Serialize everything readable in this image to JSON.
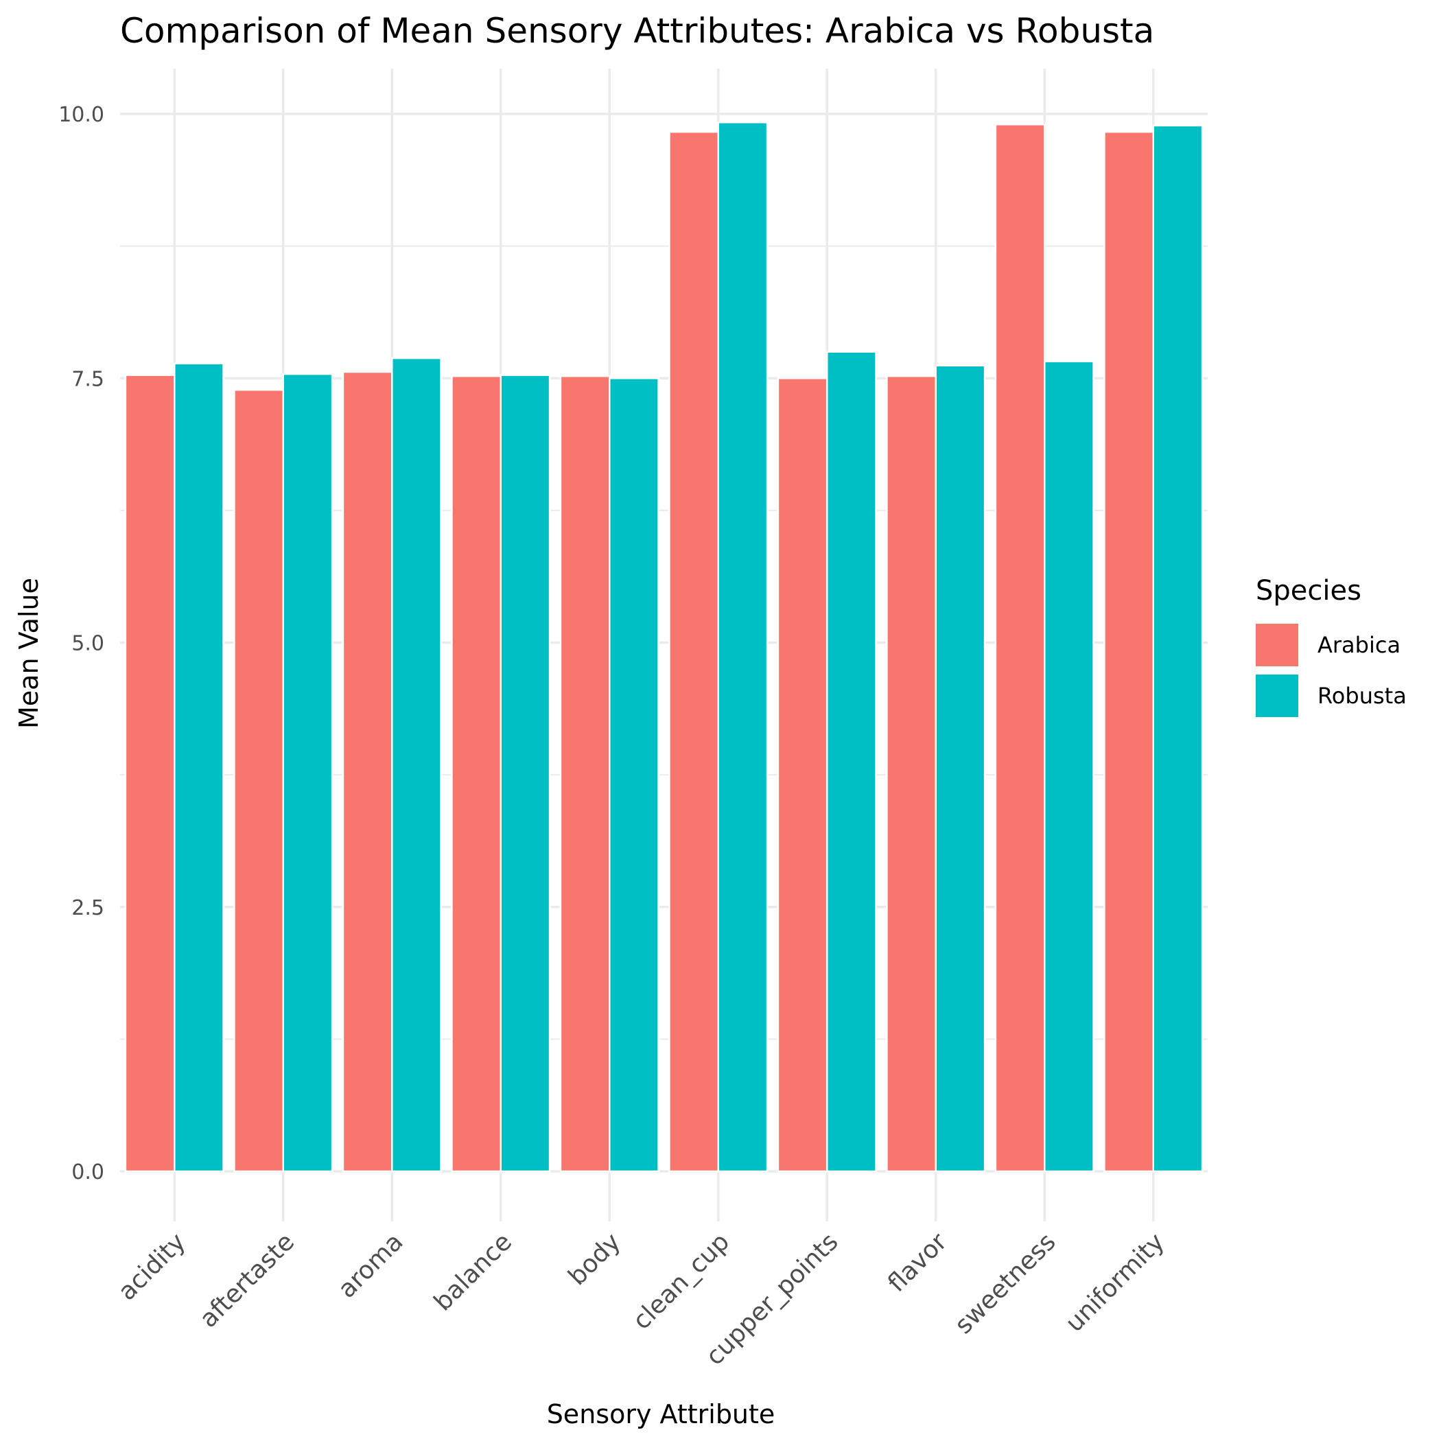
{
  "chart_data": {
    "type": "bar",
    "title": "Comparison of Mean Sensory Attributes: Arabica vs Robusta",
    "xlabel": "Sensory Attribute",
    "ylabel": "Mean Value",
    "categories": [
      "acidity",
      "aftertaste",
      "aroma",
      "balance",
      "body",
      "clean_cup",
      "cupper_points",
      "flavor",
      "sweetness",
      "uniformity"
    ],
    "series": [
      {
        "name": "Arabica",
        "color": "#F8766D",
        "values": [
          7.53,
          7.39,
          7.56,
          7.52,
          7.52,
          9.83,
          7.5,
          7.52,
          9.9,
          9.83
        ]
      },
      {
        "name": "Robusta",
        "color": "#00BFC4",
        "values": [
          7.64,
          7.54,
          7.69,
          7.53,
          7.5,
          9.92,
          7.75,
          7.62,
          7.66,
          9.89
        ]
      }
    ],
    "yticks": [
      "0.0",
      "2.5",
      "5.0",
      "7.5",
      "10.0"
    ],
    "ylim": [
      -0.5,
      10.5
    ],
    "legend": {
      "title": "Species",
      "position": "right"
    },
    "grid": true
  }
}
